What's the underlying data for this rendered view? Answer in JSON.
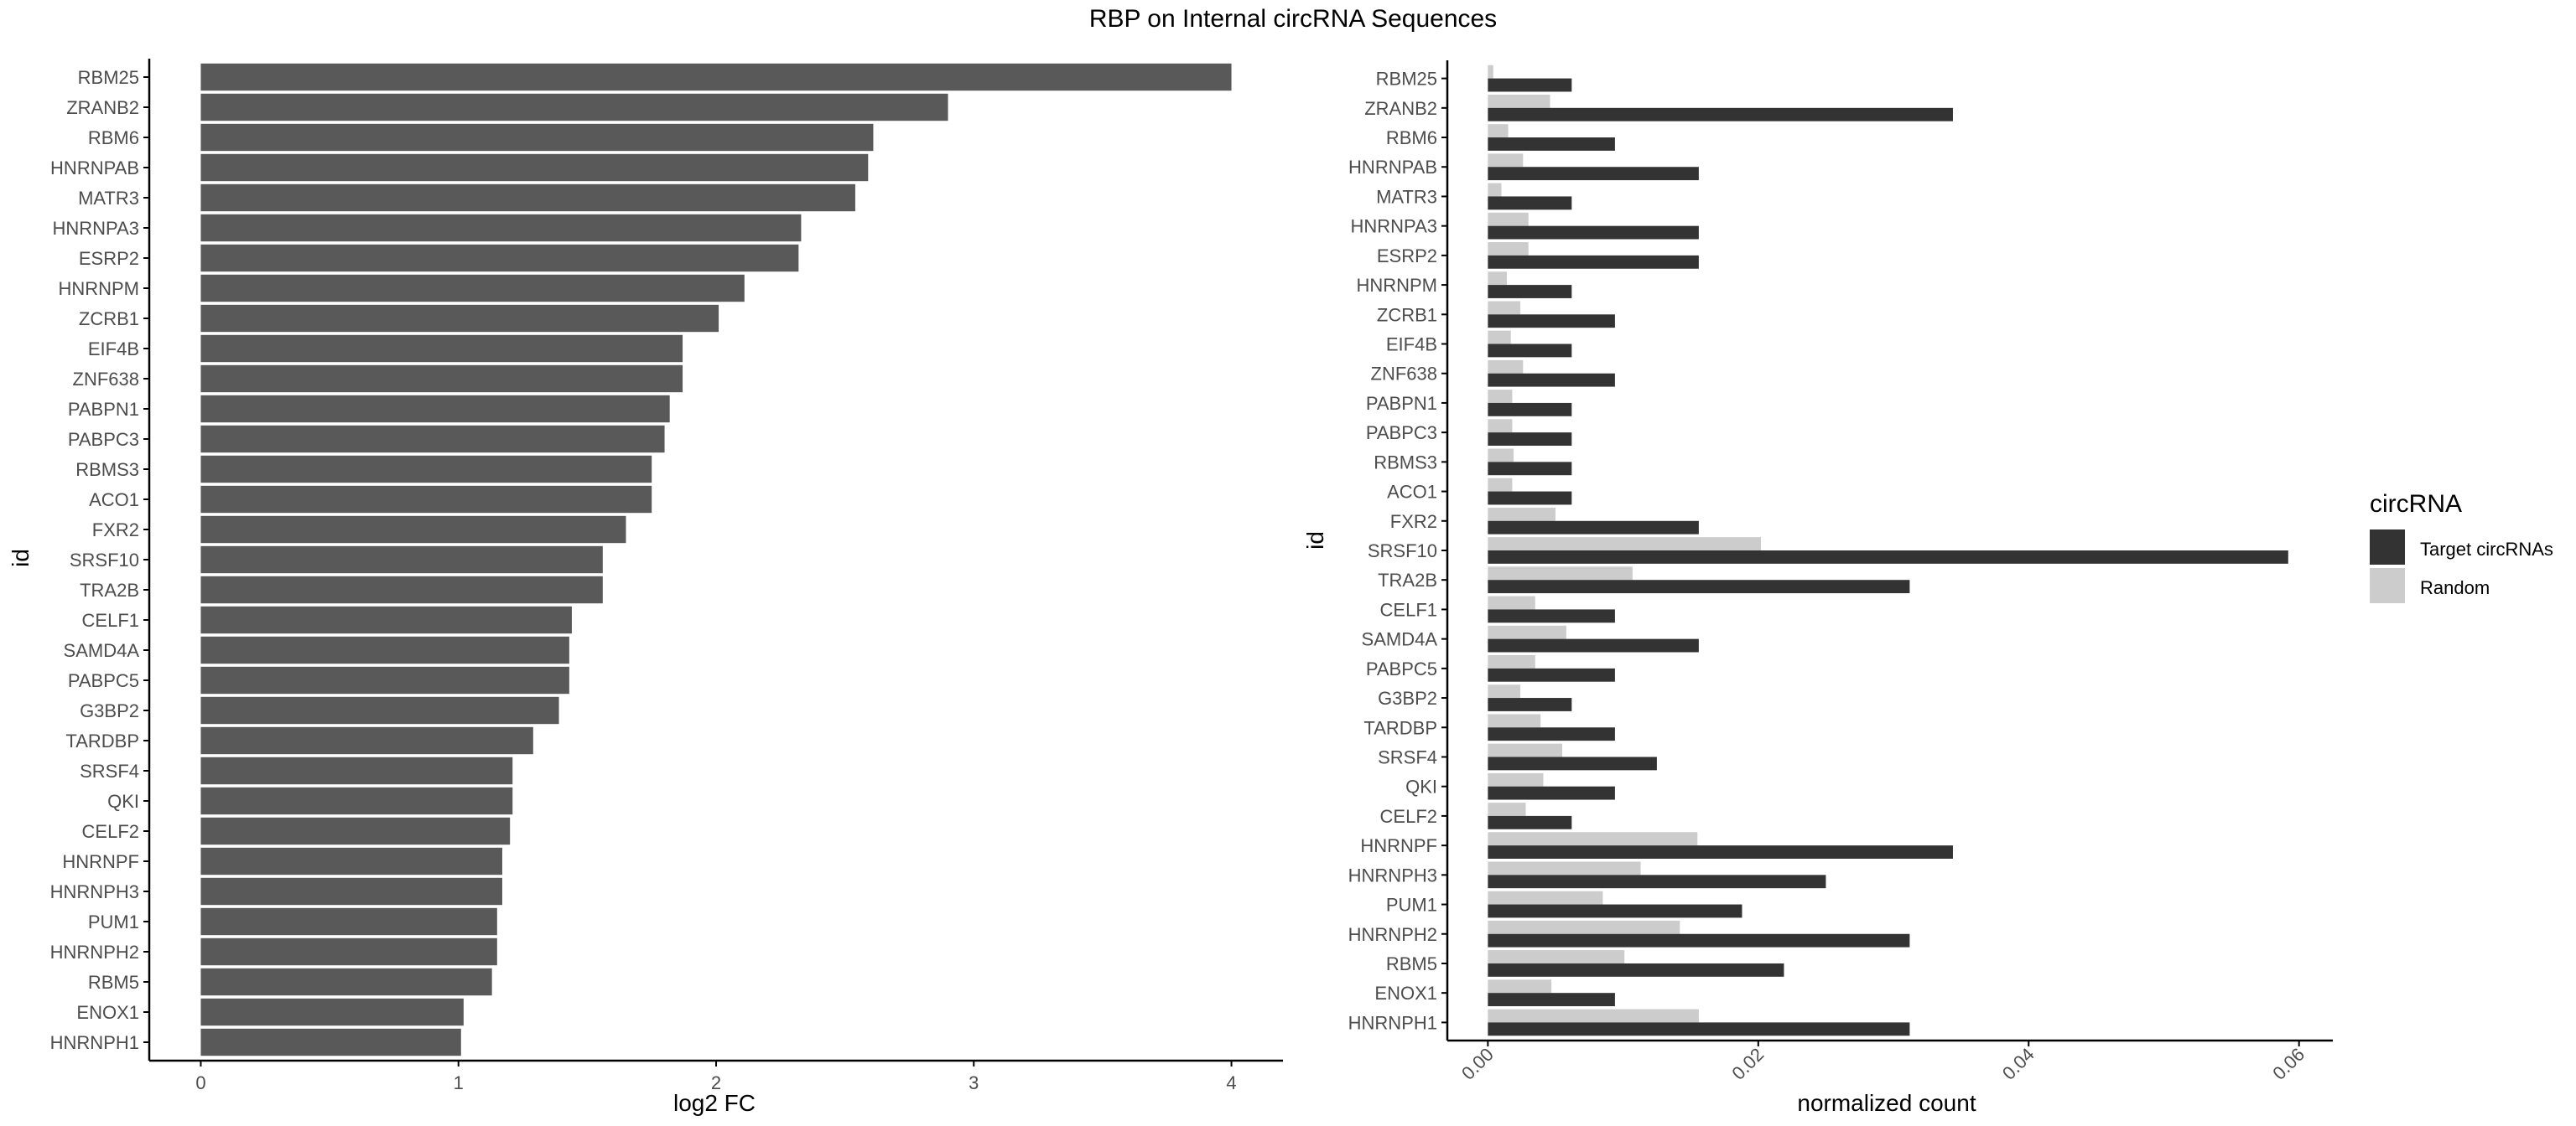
{
  "title": "RBP on Internal circRNA Sequences",
  "colors": {
    "left_bar": "#595959",
    "target": "#333333",
    "random": "#cccccc",
    "axis": "#000000",
    "tick_label": "#4d4d4d"
  },
  "chart_data": [
    {
      "type": "bar",
      "orientation": "horizontal",
      "xlabel": "log2 FC",
      "ylabel": "id",
      "xlim": [
        -0.2,
        4.2
      ],
      "xticks": [
        0,
        1,
        2,
        3,
        4
      ],
      "categories": [
        "RBM25",
        "ZRANB2",
        "RBM6",
        "HNRNPAB",
        "MATR3",
        "HNRNPA3",
        "ESRP2",
        "HNRNPM",
        "ZCRB1",
        "EIF4B",
        "ZNF638",
        "PABPN1",
        "PABPC3",
        "RBMS3",
        "ACO1",
        "FXR2",
        "SRSF10",
        "TRA2B",
        "CELF1",
        "SAMD4A",
        "PABPC5",
        "G3BP2",
        "TARDBP",
        "SRSF4",
        "QKI",
        "CELF2",
        "HNRNPF",
        "HNRNPH3",
        "PUM1",
        "HNRNPH2",
        "RBM5",
        "ENOX1",
        "HNRNPH1"
      ],
      "values": [
        4.0,
        2.9,
        2.61,
        2.59,
        2.54,
        2.33,
        2.32,
        2.11,
        2.01,
        1.87,
        1.87,
        1.82,
        1.8,
        1.75,
        1.75,
        1.65,
        1.56,
        1.56,
        1.44,
        1.43,
        1.43,
        1.39,
        1.29,
        1.21,
        1.21,
        1.2,
        1.17,
        1.17,
        1.15,
        1.15,
        1.13,
        1.02,
        1.01
      ]
    },
    {
      "type": "bar",
      "orientation": "horizontal",
      "grouped": true,
      "xlabel": "normalized count",
      "ylabel": "id",
      "xlim": [
        -0.003,
        0.0625
      ],
      "xticks": [
        0.0,
        0.02,
        0.04,
        0.06
      ],
      "xtick_labels": [
        "0.00",
        "0.02",
        "0.04",
        "0.06"
      ],
      "categories": [
        "RBM25",
        "ZRANB2",
        "RBM6",
        "HNRNPAB",
        "MATR3",
        "HNRNPA3",
        "ESRP2",
        "HNRNPM",
        "ZCRB1",
        "EIF4B",
        "ZNF638",
        "PABPN1",
        "PABPC3",
        "RBMS3",
        "ACO1",
        "FXR2",
        "SRSF10",
        "TRA2B",
        "CELF1",
        "SAMD4A",
        "PABPC5",
        "G3BP2",
        "TARDBP",
        "SRSF4",
        "QKI",
        "CELF2",
        "HNRNPF",
        "HNRNPH3",
        "PUM1",
        "HNRNPH2",
        "RBM5",
        "ENOX1",
        "HNRNPH1"
      ],
      "legend_title": "circRNA",
      "legend_position": "right",
      "series": [
        {
          "name": "Target circRNAs",
          "color": "#333333",
          "values": [
            0.0062,
            0.0344,
            0.0094,
            0.0156,
            0.0062,
            0.0156,
            0.0156,
            0.0062,
            0.0094,
            0.0062,
            0.0094,
            0.0062,
            0.0062,
            0.0062,
            0.0062,
            0.0156,
            0.0592,
            0.0312,
            0.0094,
            0.0156,
            0.0094,
            0.0062,
            0.0094,
            0.0125,
            0.0094,
            0.0062,
            0.0344,
            0.025,
            0.0188,
            0.0312,
            0.0219,
            0.0094,
            0.0312
          ]
        },
        {
          "name": "Random",
          "color": "#cccccc",
          "values": [
            0.0004,
            0.0046,
            0.0015,
            0.0026,
            0.001,
            0.003,
            0.003,
            0.0014,
            0.0024,
            0.0017,
            0.0026,
            0.0018,
            0.0018,
            0.0019,
            0.0018,
            0.005,
            0.0202,
            0.0107,
            0.0035,
            0.0058,
            0.0035,
            0.0024,
            0.0039,
            0.0055,
            0.0041,
            0.0028,
            0.0155,
            0.0113,
            0.0085,
            0.0142,
            0.0101,
            0.0047,
            0.0156
          ]
        }
      ]
    }
  ]
}
